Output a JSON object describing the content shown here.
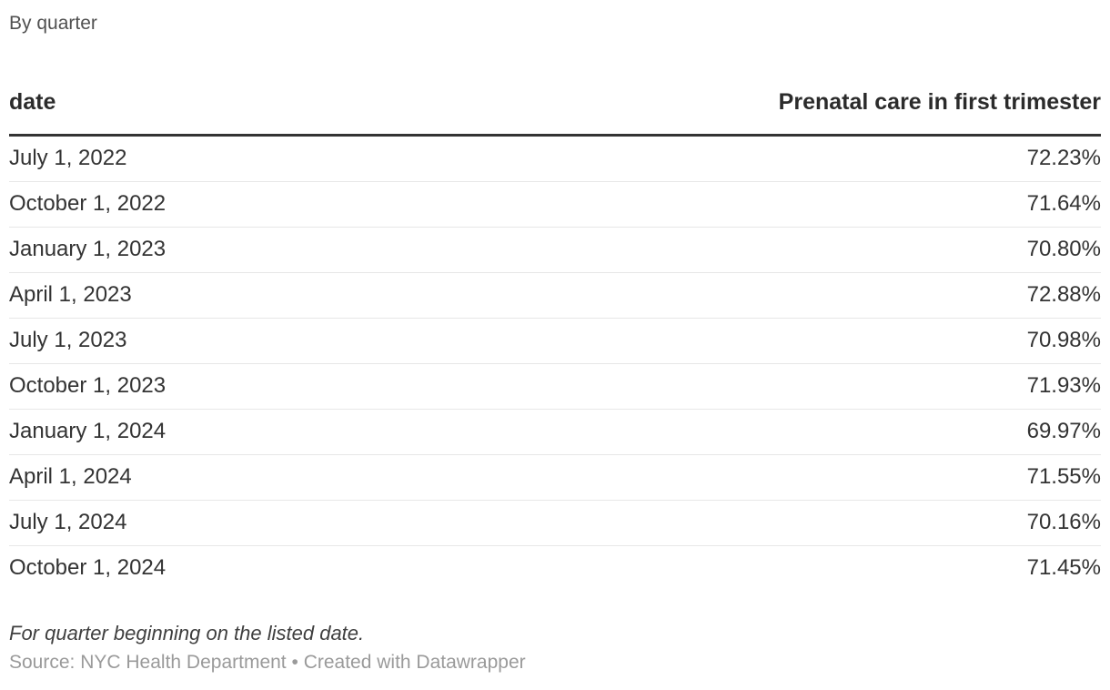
{
  "intro": "By quarter",
  "table": {
    "columns": [
      "date",
      "Prenatal care in first trimester"
    ],
    "value_suffix": "%"
  },
  "chart_data": {
    "type": "table",
    "title": "By quarter",
    "columns": [
      "date",
      "Prenatal care in first trimester"
    ],
    "rows": [
      {
        "date": "July 1, 2022",
        "value": 72.23
      },
      {
        "date": "October 1, 2022",
        "value": 71.64
      },
      {
        "date": "January 1, 2023",
        "value": 70.8
      },
      {
        "date": "April 1, 2023",
        "value": 72.88
      },
      {
        "date": "July 1, 2023",
        "value": 70.98
      },
      {
        "date": "October 1, 2023",
        "value": 71.93
      },
      {
        "date": "January 1, 2024",
        "value": 69.97
      },
      {
        "date": "April 1, 2024",
        "value": 71.55
      },
      {
        "date": "July 1, 2024",
        "value": 70.16
      },
      {
        "date": "October 1, 2024",
        "value": 71.45
      }
    ],
    "value_format": "percent, 2 decimals",
    "value_range_shown": [
      69.97,
      72.88
    ],
    "notes": "For quarter beginning on the listed date.",
    "source": "NYC Health Department"
  },
  "footer": {
    "note": "For quarter beginning on the listed date.",
    "source_text": "Source: NYC Health Department",
    "separator": "•",
    "attribution": "Created with Datawrapper"
  },
  "colors": {
    "text": "#333333",
    "intro_text": "#515151",
    "header_rule": "#333333",
    "row_divider": "#e7e7e7",
    "note_text": "#3f3f3f",
    "source_text": "#9a9a9a",
    "background": "#ffffff"
  }
}
